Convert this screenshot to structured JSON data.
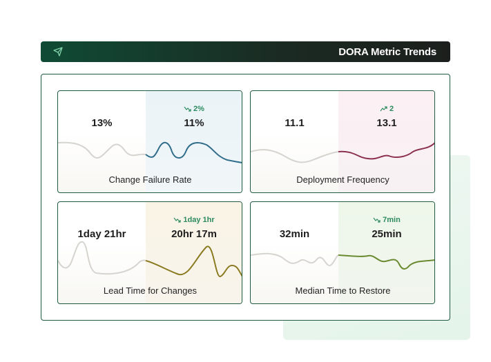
{
  "header": {
    "title": "DORA Metric Trends"
  },
  "cards": [
    {
      "title": "Change Failure Rate",
      "previous": "13%",
      "current": "11%",
      "change": "2%"
    },
    {
      "title": "Deployment Frequency",
      "previous": "11.1",
      "current": "13.1",
      "change": "2"
    },
    {
      "title": "Lead Time for Changes",
      "previous": "1day 21hr",
      "current": "20hr 17m",
      "change": "1day 1hr"
    },
    {
      "title": "Median Time to Restore",
      "previous": "32min",
      "current": "25min",
      "change": "7min"
    }
  ]
}
